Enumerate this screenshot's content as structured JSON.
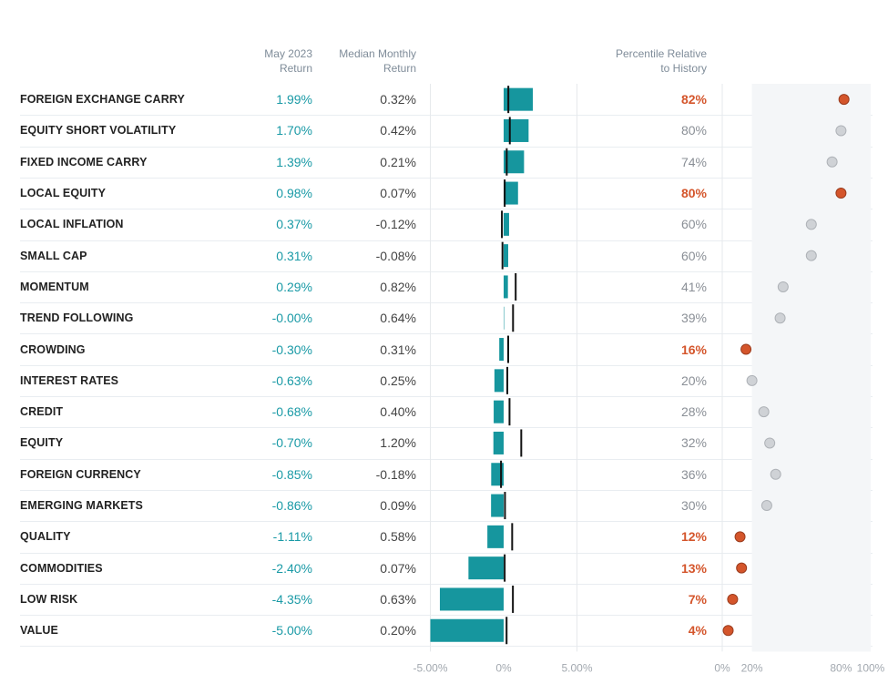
{
  "headers": {
    "return_line1": "May 2023",
    "return_line2": "Return",
    "median_line1": "Median Monthly",
    "median_line2": "Return",
    "pct_line1": "Percentile Relative",
    "pct_line2": "to History"
  },
  "colors": {
    "bar": "#16969e",
    "return_text": "#1a9aa6",
    "highlight": "#d4552b",
    "neutral_dot": "#cfd2d6",
    "neutral_text": "#8a8f96",
    "shade": "#f4f6f8"
  },
  "chart_data": [
    {
      "type": "bar",
      "orientation": "horizontal",
      "categories": [
        "FOREIGN EXCHANGE CARRY",
        "EQUITY SHORT VOLATILITY",
        "FIXED INCOME CARRY",
        "LOCAL EQUITY",
        "LOCAL INFLATION",
        "SMALL CAP",
        "MOMENTUM",
        "TREND FOLLOWING",
        "CROWDING",
        "INTEREST RATES",
        "CREDIT",
        "EQUITY",
        "FOREIGN CURRENCY",
        "EMERGING MARKETS",
        "QUALITY",
        "COMMODITIES",
        "LOW RISK",
        "VALUE"
      ],
      "series": [
        {
          "name": "May 2023 Return",
          "values": [
            1.99,
            1.7,
            1.39,
            0.98,
            0.37,
            0.31,
            0.29,
            -0.0,
            -0.3,
            -0.63,
            -0.68,
            -0.7,
            -0.85,
            -0.86,
            -1.11,
            -2.4,
            -4.35,
            -5.0
          ]
        },
        {
          "name": "Median Monthly Return",
          "values": [
            0.32,
            0.42,
            0.21,
            0.07,
            -0.12,
            -0.08,
            0.82,
            0.64,
            0.31,
            0.25,
            0.4,
            1.2,
            -0.18,
            0.09,
            0.58,
            0.07,
            0.63,
            0.2
          ]
        }
      ],
      "return_labels": [
        "1.99%",
        "1.70%",
        "1.39%",
        "0.98%",
        "0.37%",
        "0.31%",
        "0.29%",
        "-0.00%",
        "-0.30%",
        "-0.63%",
        "-0.68%",
        "-0.70%",
        "-0.85%",
        "-0.86%",
        "-1.11%",
        "-2.40%",
        "-4.35%",
        "-5.00%"
      ],
      "median_labels": [
        "0.32%",
        "0.42%",
        "0.21%",
        "0.07%",
        "-0.12%",
        "-0.08%",
        "0.82%",
        "0.64%",
        "0.31%",
        "0.25%",
        "0.40%",
        "1.20%",
        "-0.18%",
        "0.09%",
        "0.58%",
        "0.07%",
        "0.63%",
        "0.20%"
      ],
      "xlim": [
        -5.0,
        5.0
      ],
      "xticks": [
        "-5.00%",
        "0%",
        "5.00%"
      ],
      "xtick_values": [
        -5,
        0,
        5
      ]
    },
    {
      "type": "scatter",
      "name": "Percentile Relative to History",
      "values": [
        82,
        80,
        74,
        80,
        60,
        60,
        41,
        39,
        16,
        20,
        28,
        32,
        36,
        30,
        12,
        13,
        7,
        4
      ],
      "labels": [
        "82%",
        "80%",
        "74%",
        "80%",
        "60%",
        "60%",
        "41%",
        "39%",
        "16%",
        "20%",
        "28%",
        "32%",
        "36%",
        "30%",
        "12%",
        "13%",
        "7%",
        "4%"
      ],
      "highlighted": [
        true,
        false,
        false,
        true,
        false,
        false,
        false,
        false,
        true,
        false,
        false,
        false,
        false,
        false,
        true,
        true,
        true,
        true
      ],
      "xlim": [
        0,
        100
      ],
      "xticks": [
        "0%",
        "20%",
        "80%",
        "100%"
      ],
      "xtick_values": [
        0,
        20,
        80,
        100
      ],
      "shaded_range": [
        20,
        80
      ]
    }
  ]
}
